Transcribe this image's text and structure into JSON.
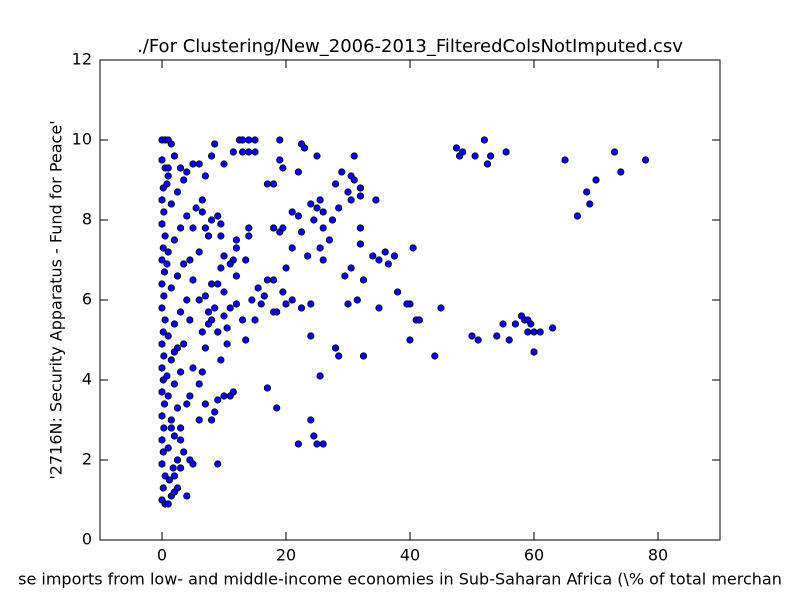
{
  "chart_data": {
    "type": "scatter",
    "title": "./For Clustering/New_2006-2013_FilteredColsNotImputed.csv",
    "x_label": "se imports from low- and middle-income economies in Sub-Saharan Africa  (\\% of total merchan",
    "y_label": "'2716N: Security Apparatus - Fund for Peace'",
    "color": "#0000ff",
    "xlim": [
      -10,
      90
    ],
    "xticks": [
      0,
      20,
      40,
      60,
      80
    ],
    "ylim": [
      0,
      12
    ],
    "yticks": [
      0,
      2,
      4,
      6,
      8,
      10,
      12
    ],
    "x": [
      47.5,
      48,
      48.5,
      50.5,
      52,
      52.5,
      53,
      55.5,
      65,
      67,
      68.5,
      69,
      70,
      73,
      74,
      78,
      50,
      51,
      54,
      56,
      55,
      57,
      58,
      58.5,
      59,
      59.5,
      60,
      60,
      61,
      63,
      59,
      44,
      45,
      40,
      40,
      41,
      41.5,
      39.5,
      40.5,
      38,
      37.5,
      36.5,
      36,
      35,
      34,
      35,
      32.5,
      32,
      32,
      31.5,
      30.5,
      30,
      29.5,
      32.5,
      28.5,
      28,
      34.5,
      32,
      32,
      31,
      30,
      30.5,
      30.5,
      31,
      29,
      28,
      28.5,
      27.5,
      27,
      26,
      26,
      25.5,
      25,
      25.5,
      24.5,
      24,
      23.5,
      22.5,
      22,
      21,
      21,
      20,
      20,
      21,
      22.5,
      24,
      24,
      25,
      23,
      22.5,
      22,
      19.5,
      19,
      19,
      18,
      17,
      19,
      19.5,
      18,
      18,
      17,
      16.5,
      16,
      15.5,
      15,
      14.5,
      14,
      14,
      13.5,
      13,
      13.5,
      12,
      12,
      12,
      11.5,
      11,
      11,
      10.5,
      10,
      18,
      18.5,
      19.5,
      17,
      18.5,
      22,
      24,
      24.5,
      25,
      26,
      25.5,
      26,
      12.5,
      13,
      14,
      15,
      13,
      14,
      15,
      11.5,
      10,
      8.5,
      8,
      10,
      11,
      11.5,
      9,
      8.5,
      8,
      9,
      10.5,
      9.5,
      9,
      12,
      0,
      0.5,
      1,
      1.5,
      0,
      0.5,
      1,
      0.2,
      0,
      0.3,
      0,
      0.5,
      0.2,
      0,
      0.4,
      0,
      0.3,
      0,
      0.5,
      0.2,
      0,
      0.3,
      0,
      0.2,
      0,
      0.4,
      0,
      0.3,
      0,
      0.2,
      0,
      0.5,
      0.2,
      0,
      0.5,
      1,
      1.5,
      2,
      1.2,
      1.8,
      2.5,
      1,
      2,
      3,
      1.5,
      2.5,
      1,
      2,
      3,
      1.5,
      2.5,
      1,
      2,
      3,
      4,
      1.5,
      2.5,
      3.5,
      1,
      2,
      3,
      4,
      1.5,
      2.5,
      3.5,
      1,
      2,
      3,
      4,
      5,
      6,
      5.5,
      6.5,
      7,
      7.5,
      6,
      5,
      6,
      7,
      7.5,
      8,
      6.5,
      7,
      5,
      4.5,
      4,
      6,
      7,
      4.5,
      5,
      3,
      2,
      4,
      2.5,
      3.5,
      6.5,
      6,
      4.5,
      3.5,
      5,
      4.5,
      8,
      9,
      9.5,
      10,
      9.5,
      10,
      9,
      8.5,
      8,
      9,
      9.5,
      7,
      6.5,
      7.5,
      3,
      1.5,
      2,
      0.8,
      0.8,
      0.8
    ],
    "values": [
      9.8,
      9.6,
      9.7,
      9.6,
      10,
      9.4,
      9.6,
      9.7,
      9.5,
      8.1,
      8.7,
      8.4,
      9,
      9.7,
      9.2,
      9.5,
      5.1,
      5,
      5.1,
      5,
      5.4,
      5.4,
      5.6,
      5.5,
      5.2,
      5.4,
      5.2,
      4.7,
      5.2,
      5.3,
      5.5,
      4.6,
      5.8,
      5,
      5.9,
      5.5,
      5.5,
      5.9,
      7.3,
      6.2,
      7.1,
      6.9,
      7.2,
      7,
      7.1,
      5.8,
      6.5,
      7.4,
      7.8,
      6,
      6.8,
      5.9,
      6.6,
      4.6,
      4.6,
      4.8,
      8.5,
      8.6,
      8.8,
      9.6,
      8.7,
      9.1,
      8.5,
      9,
      9.2,
      8.9,
      8.3,
      8,
      7.5,
      7,
      8.2,
      8.5,
      8.3,
      7.3,
      8,
      8.4,
      7.1,
      7.7,
      8.1,
      8.2,
      7.3,
      6.8,
      5.9,
      6,
      5.8,
      5.9,
      5.1,
      9.6,
      9.8,
      9.9,
      9.2,
      9.3,
      10,
      9.5,
      8.9,
      8.9,
      7.7,
      7.8,
      7.8,
      6.5,
      6.5,
      6.1,
      5.9,
      6.3,
      5.5,
      6,
      7.6,
      7.8,
      7,
      5.5,
      5,
      6.6,
      7.3,
      7.5,
      7,
      6.9,
      5.8,
      5.3,
      5.6,
      5.7,
      5.7,
      6.2,
      3.8,
      3.3,
      2.4,
      3,
      2.6,
      2.4,
      2.4,
      4.1,
      7.8,
      10,
      10,
      10,
      10,
      9.7,
      9.7,
      9.7,
      9.7,
      9.4,
      9.9,
      9.6,
      3.6,
      3.6,
      3.7,
      3.5,
      3.2,
      3,
      1.9,
      4.9,
      4.5,
      5.2,
      5.9,
      10,
      10,
      10,
      9.9,
      9.5,
      9.3,
      9.1,
      8.8,
      8.5,
      8.2,
      7.9,
      7.6,
      7.3,
      7,
      6.7,
      6.4,
      6.1,
      5.8,
      5.5,
      5.2,
      4.9,
      4.6,
      4.3,
      4,
      3.7,
      3.4,
      3.1,
      2.8,
      2.5,
      2.2,
      1.9,
      1.6,
      1.3,
      1,
      0.9,
      0.9,
      1.1,
      1.2,
      1.5,
      1.8,
      2,
      2.3,
      2.6,
      2.8,
      3,
      3.3,
      3.6,
      3.9,
      4.2,
      4.5,
      4.8,
      5.1,
      5.4,
      5.7,
      6,
      6.3,
      6.6,
      6.9,
      7.2,
      7.5,
      7.8,
      8.1,
      8.4,
      8.7,
      9,
      9.3,
      9.6,
      9.3,
      9.2,
      9.4,
      9.4,
      8.3,
      8.2,
      7.8,
      7.6,
      7.2,
      6.5,
      6,
      6.1,
      5.7,
      6.4,
      5.2,
      4.8,
      4.3,
      3.6,
      3.4,
      3,
      3.4,
      2,
      1.9,
      2.5,
      1.6,
      1.1,
      1.3,
      2.2,
      4.2,
      3.9,
      5.5,
      4.9,
      7.8,
      7,
      8,
      8.1,
      7.9,
      7.1,
      6.8,
      6.2,
      6.4,
      5.8,
      5.5,
      5.2,
      7.6,
      9.1,
      8.5,
      5.4,
      1.8,
      2.8,
      4.7,
      4.1,
      6.9,
      8.9
    ]
  }
}
